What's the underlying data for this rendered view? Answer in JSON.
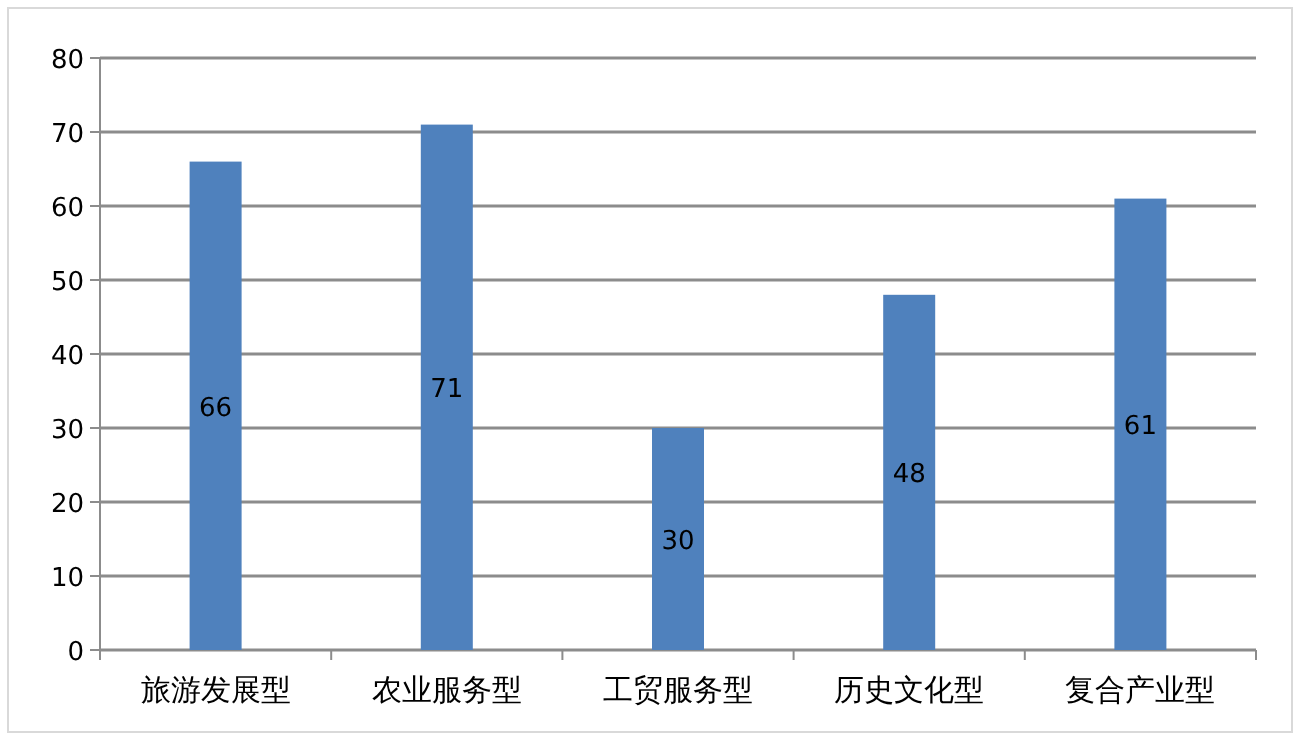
{
  "chart_data": {
    "type": "bar",
    "categories": [
      "旅游发展型",
      "农业服务型",
      "工贸服务型",
      "历史文化型",
      "复合产业型"
    ],
    "values": [
      66,
      71,
      30,
      48,
      61
    ],
    "color": "#4f81bd",
    "ylim": [
      0,
      80
    ],
    "yticks": [
      0,
      10,
      20,
      30,
      40,
      50,
      60,
      70,
      80
    ],
    "grid": "y",
    "data_labels": true
  }
}
